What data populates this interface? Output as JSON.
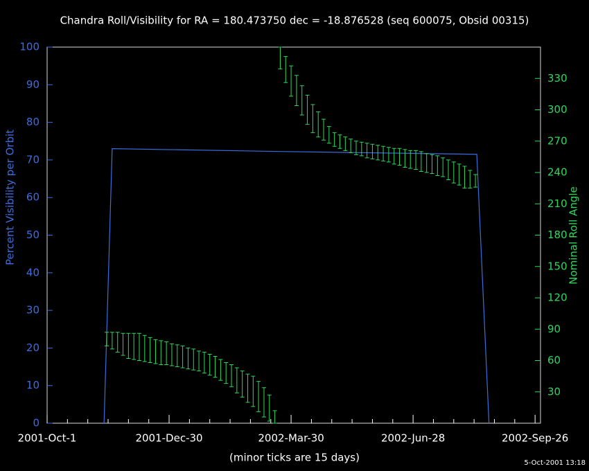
{
  "chart_data": {
    "type": "combo",
    "title": "Chandra Roll/Visibility for RA = 180.473750 dec = -18.876528 (seq 600075, Obsid 00315)",
    "xlabel": "(minor ticks are 15 days)",
    "ylabel": "Percent Visibility per Orbit",
    "y2label": "Nominal Roll Angle",
    "timestamp": "5-Oct-2001 13:18",
    "ycolor": "#3a6ee0",
    "y2color": "#2fd85a",
    "xlim": [
      0,
      364
    ],
    "xticks": [
      {
        "value": 0,
        "label": "2001-Oct-1"
      },
      {
        "value": 90,
        "label": "2001-Dec-30"
      },
      {
        "value": 180,
        "label": "2002-Mar-30"
      },
      {
        "value": 270,
        "label": "2002-Jun-28"
      },
      {
        "value": 360,
        "label": "2002-Sep-26"
      }
    ],
    "xminorticks": [
      15,
      30,
      45,
      60,
      75,
      105,
      120,
      135,
      150,
      165,
      195,
      210,
      225,
      240,
      255,
      285,
      300,
      315,
      330,
      345
    ],
    "ylim": [
      0,
      100
    ],
    "yticks": [
      0,
      10,
      20,
      30,
      40,
      50,
      60,
      70,
      80,
      90,
      100
    ],
    "y2lim": [
      0,
      360
    ],
    "y2ticks": [
      30,
      60,
      90,
      120,
      150,
      180,
      210,
      240,
      270,
      300,
      330
    ],
    "series": [
      {
        "type": "line",
        "color": "#3a6ee0",
        "x": [
          42,
          48,
          180,
          317,
          326
        ],
        "values": [
          0,
          73,
          72.2,
          71.5,
          0
        ]
      },
      {
        "type": "errorbar",
        "axis": "y2",
        "color": "#2fd85a",
        "x": [
          44,
          48,
          52,
          56,
          60,
          64,
          68,
          72,
          76,
          80,
          84,
          88,
          92,
          96,
          100,
          104,
          108,
          112,
          116,
          120,
          124,
          128,
          132,
          136,
          140,
          144,
          148,
          152,
          156,
          160,
          164,
          168,
          172,
          176,
          180,
          184,
          188,
          192,
          196,
          200,
          204,
          208,
          212,
          216,
          220,
          224,
          228,
          232,
          236,
          240,
          244,
          248,
          252,
          256,
          260,
          264,
          268,
          272,
          276,
          280,
          284,
          288,
          292,
          296,
          300,
          304,
          308,
          312,
          316
        ],
        "low": [
          74,
          71,
          68,
          65,
          62,
          61,
          60,
          59,
          58,
          57,
          56,
          56,
          55,
          54,
          53,
          52,
          51,
          50,
          48,
          46,
          44,
          41,
          38,
          35,
          29,
          25,
          20,
          16,
          11,
          6,
          2,
          0,
          339,
          326,
          313,
          304,
          295,
          286,
          278,
          274,
          271,
          268,
          265,
          263,
          261,
          259,
          257,
          256,
          254,
          253,
          252,
          251,
          250,
          248,
          247,
          245,
          244,
          243,
          241,
          240,
          239,
          237,
          236,
          233,
          230,
          228,
          225,
          225,
          226
        ],
        "high": [
          87,
          87,
          87,
          86,
          86,
          86,
          86,
          84,
          82,
          80,
          79,
          78,
          76,
          75,
          74,
          72,
          71,
          69,
          68,
          66,
          64,
          61,
          58,
          56,
          53,
          50,
          47,
          45,
          40,
          34,
          27,
          12,
          360,
          351,
          342,
          333,
          323,
          314,
          305,
          298,
          291,
          284,
          278,
          276,
          274,
          272,
          270,
          269,
          268,
          267,
          266,
          265,
          264,
          263,
          263,
          262,
          261,
          261,
          260,
          258,
          257,
          256,
          254,
          252,
          250,
          248,
          246,
          242,
          238
        ]
      }
    ]
  }
}
